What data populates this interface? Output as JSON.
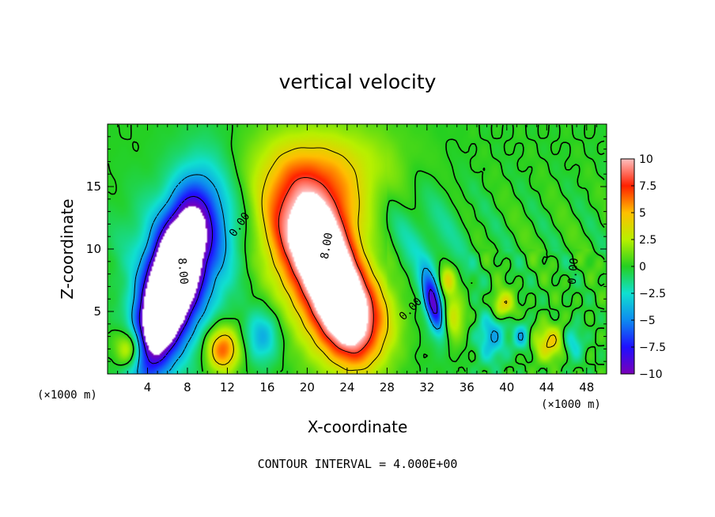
{
  "chart_data": {
    "type": "heatmap",
    "title": "vertical velocity",
    "xlabel": "X-coordinate",
    "ylabel": "Z-coordinate",
    "x_unit": "(×1000 m)",
    "y_unit": "(×1000 m)",
    "xlim": [
      0,
      50
    ],
    "ylim": [
      0,
      20
    ],
    "x_ticks": [
      4,
      8,
      12,
      16,
      20,
      24,
      28,
      32,
      36,
      40,
      44,
      48
    ],
    "y_ticks": [
      5,
      10,
      15
    ],
    "colorbar": {
      "range": [
        -10,
        10
      ],
      "ticks": [
        "10",
        "7.5",
        "5",
        "2.5",
        "0",
        "−2.5",
        "−5",
        "−7.5",
        "−10"
      ],
      "tick_values": [
        10,
        7.5,
        5,
        2.5,
        0,
        -2.5,
        -5,
        -7.5,
        -10
      ]
    },
    "contour_note": "CONTOUR INTERVAL = 4.000E+00",
    "contour_interval": 4,
    "contour_labels": [
      {
        "text": "0.00",
        "x": 13.5,
        "z": 11.8,
        "rot": -55
      },
      {
        "text": "8.00",
        "x": 7.2,
        "z": 8.2,
        "rot": 85
      },
      {
        "text": "8.00",
        "x": 22.3,
        "z": 10.2,
        "rot": -80
      },
      {
        "text": "0.00",
        "x": 30.6,
        "z": 5.0,
        "rot": -45
      },
      {
        "text": "0.00",
        "x": 47.0,
        "z": 8.2,
        "rot": -85
      }
    ],
    "features": [
      {
        "x": 6.0,
        "z": 6.5,
        "sx": 1.6,
        "sz": 4.5,
        "amp": -18,
        "rot": 0.35
      },
      {
        "x": 8.2,
        "z": 9.0,
        "sx": 2.6,
        "sz": 5.0,
        "amp": -6,
        "rot": 0.2
      },
      {
        "x": 21.0,
        "z": 9.5,
        "sx": 2.8,
        "sz": 4.2,
        "amp": 10,
        "rot": -0.45
      },
      {
        "x": 23.0,
        "z": 6.5,
        "sx": 1.5,
        "sz": 3.5,
        "amp": 8,
        "rot": -0.4
      },
      {
        "x": 25.0,
        "z": 4.5,
        "sx": 3.0,
        "sz": 2.8,
        "amp": 7,
        "rot": -0.3
      },
      {
        "x": 20.0,
        "z": 12.5,
        "sx": 4.0,
        "sz": 3.0,
        "amp": 3.5,
        "rot": 0
      },
      {
        "x": 22.5,
        "z": 16.0,
        "sx": 6.0,
        "sz": 3.0,
        "amp": 2.2,
        "rot": 0
      },
      {
        "x": 2.3,
        "z": 2.0,
        "sx": 1.0,
        "sz": 1.1,
        "amp": 6,
        "rot": 0
      },
      {
        "x": 11.5,
        "z": 2.0,
        "sx": 1.2,
        "sz": 1.3,
        "amp": 7,
        "rot": 0
      },
      {
        "x": 15.5,
        "z": 3.0,
        "sx": 1.2,
        "sz": 1.5,
        "amp": -4,
        "rot": 0
      },
      {
        "x": 32.7,
        "z": 5.5,
        "sx": 0.6,
        "sz": 1.8,
        "amp": -9,
        "rot": -0.3
      },
      {
        "x": 34.5,
        "z": 4.5,
        "sx": 0.9,
        "sz": 1.5,
        "amp": 4,
        "rot": 0
      },
      {
        "x": 34.0,
        "z": 7.5,
        "sx": 0.6,
        "sz": 0.8,
        "amp": 4,
        "rot": 0
      },
      {
        "x": 39.5,
        "z": 5.5,
        "sx": 0.8,
        "sz": 0.8,
        "amp": 4.5,
        "rot": 0
      },
      {
        "x": 38.5,
        "z": 3.0,
        "sx": 1.0,
        "sz": 1.5,
        "amp": -4,
        "rot": 0
      },
      {
        "x": 44.5,
        "z": 2.5,
        "sx": 1.3,
        "sz": 1.0,
        "amp": 4.5,
        "rot": 0
      },
      {
        "x": 46.5,
        "z": 2.5,
        "sx": 0.8,
        "sz": 1.0,
        "amp": -4,
        "rot": 0
      },
      {
        "x": 41.5,
        "z": 3.0,
        "sx": 0.6,
        "sz": 0.8,
        "amp": -4,
        "rot": 0
      },
      {
        "x": 11.0,
        "z": 12.0,
        "sx": 3.0,
        "sz": 3.0,
        "amp": -2,
        "rot": 0
      },
      {
        "x": 30.0,
        "z": 10.0,
        "sx": 4.0,
        "sz": 5.0,
        "amp": -1.8,
        "rot": 0
      },
      {
        "x": 3.0,
        "z": 10.0,
        "sx": 2.0,
        "sz": 3.0,
        "amp": -1.2,
        "rot": 0
      }
    ]
  }
}
